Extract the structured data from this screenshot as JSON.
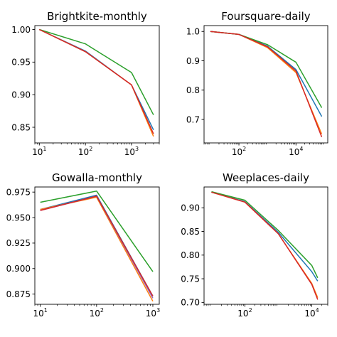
{
  "chart_data": [
    {
      "type": "line",
      "title": "Brightkite-monthly",
      "xscale": "log",
      "xlim": [
        8,
        4000
      ],
      "ylim": [
        0.826,
        1.006
      ],
      "xticks": [
        {
          "value": 10,
          "base": "10",
          "exp": "1"
        },
        {
          "value": 100,
          "base": "10",
          "exp": "2"
        },
        {
          "value": 1000,
          "base": "10",
          "exp": "3"
        }
      ],
      "yticks": [
        {
          "value": 0.85,
          "label": "0.85"
        },
        {
          "value": 0.9,
          "label": "0.90"
        },
        {
          "value": 0.95,
          "label": "0.95"
        },
        {
          "value": 1.0,
          "label": "1.00"
        }
      ],
      "series": [
        {
          "color": "#1f77b4",
          "x": [
            10,
            100,
            1000,
            3000
          ],
          "y": [
            1.0,
            0.967,
            0.915,
            0.846
          ]
        },
        {
          "color": "#ff7f0e",
          "x": [
            10,
            100,
            1000,
            3000
          ],
          "y": [
            1.0,
            0.966,
            0.915,
            0.836
          ]
        },
        {
          "color": "#2ca02c",
          "x": [
            10,
            100,
            1000,
            3000
          ],
          "y": [
            1.0,
            0.978,
            0.934,
            0.869
          ]
        },
        {
          "color": "#d62728",
          "x": [
            10,
            100,
            1000,
            3000
          ],
          "y": [
            1.0,
            0.966,
            0.915,
            0.84
          ]
        }
      ]
    },
    {
      "type": "line",
      "title": "Foursquare-daily",
      "xscale": "log",
      "xlim": [
        6,
        130000
      ],
      "ylim": [
        0.62,
        1.02
      ],
      "xticks": [
        {
          "value": 100,
          "base": "10",
          "exp": "2"
        },
        {
          "value": 10000,
          "base": "10",
          "exp": "4"
        }
      ],
      "yticks": [
        {
          "value": 0.7,
          "label": "0.7"
        },
        {
          "value": 0.8,
          "label": "0.8"
        },
        {
          "value": 0.9,
          "label": "0.9"
        },
        {
          "value": 1.0,
          "label": "1.0"
        }
      ],
      "series": [
        {
          "color": "#1f77b4",
          "x": [
            10,
            100,
            1000,
            10000,
            80000
          ],
          "y": [
            1.0,
            0.99,
            0.95,
            0.87,
            0.71
          ]
        },
        {
          "color": "#ff7f0e",
          "x": [
            10,
            100,
            1000,
            10000,
            80000
          ],
          "y": [
            1.0,
            0.99,
            0.945,
            0.86,
            0.65
          ]
        },
        {
          "color": "#2ca02c",
          "x": [
            10,
            100,
            1000,
            10000,
            80000
          ],
          "y": [
            1.0,
            0.99,
            0.955,
            0.895,
            0.74
          ]
        },
        {
          "color": "#d62728",
          "x": [
            10,
            100,
            1000,
            10000,
            80000
          ],
          "y": [
            1.0,
            0.99,
            0.948,
            0.865,
            0.64
          ]
        }
      ]
    },
    {
      "type": "line",
      "title": "Gowalla-monthly",
      "xscale": "log",
      "xlim": [
        8,
        1300
      ],
      "ylim": [
        0.865,
        0.98
      ],
      "xticks": [
        {
          "value": 10,
          "base": "10",
          "exp": "1"
        },
        {
          "value": 100,
          "base": "10",
          "exp": "2"
        },
        {
          "value": 1000,
          "base": "10",
          "exp": "3"
        }
      ],
      "yticks": [
        {
          "value": 0.875,
          "label": "0.875"
        },
        {
          "value": 0.9,
          "label": "0.900"
        },
        {
          "value": 0.925,
          "label": "0.925"
        },
        {
          "value": 0.95,
          "label": "0.950"
        },
        {
          "value": 0.975,
          "label": "0.975"
        }
      ],
      "series": [
        {
          "color": "#1f77b4",
          "x": [
            10,
            100,
            1000
          ],
          "y": [
            0.958,
            0.972,
            0.873
          ]
        },
        {
          "color": "#ff7f0e",
          "x": [
            10,
            100,
            1000
          ],
          "y": [
            0.958,
            0.97,
            0.868
          ]
        },
        {
          "color": "#2ca02c",
          "x": [
            10,
            100,
            1000
          ],
          "y": [
            0.965,
            0.976,
            0.897
          ]
        },
        {
          "color": "#9467bd",
          "x": [
            10,
            100,
            1000
          ],
          "y": [
            0.957,
            0.971,
            0.871
          ]
        },
        {
          "color": "#d62728",
          "x": [
            10,
            100,
            1000
          ],
          "y": [
            0.957,
            0.971,
            0.873
          ]
        }
      ]
    },
    {
      "type": "line",
      "title": "Weeplaces-daily",
      "xscale": "log",
      "xlim": [
        6,
        30000
      ],
      "ylim": [
        0.696,
        0.944
      ],
      "xticks": [
        {
          "value": 100,
          "base": "10",
          "exp": "2"
        },
        {
          "value": 10000,
          "base": "10",
          "exp": "4"
        }
      ],
      "yticks": [
        {
          "value": 0.7,
          "label": "0.70"
        },
        {
          "value": 0.75,
          "label": "0.75"
        },
        {
          "value": 0.8,
          "label": "0.80"
        },
        {
          "value": 0.85,
          "label": "0.85"
        },
        {
          "value": 0.9,
          "label": "0.90"
        }
      ],
      "series": [
        {
          "color": "#1f77b4",
          "x": [
            10,
            100,
            1000,
            10000,
            15000
          ],
          "y": [
            0.933,
            0.913,
            0.848,
            0.765,
            0.745
          ]
        },
        {
          "color": "#ff7f0e",
          "x": [
            10,
            100,
            1000,
            10000,
            15000
          ],
          "y": [
            0.933,
            0.912,
            0.845,
            0.74,
            0.71
          ]
        },
        {
          "color": "#2ca02c",
          "x": [
            10,
            100,
            1000,
            10000,
            15000
          ],
          "y": [
            0.934,
            0.916,
            0.852,
            0.778,
            0.752
          ]
        },
        {
          "color": "#d62728",
          "x": [
            10,
            100,
            1000,
            10000,
            15000
          ],
          "y": [
            0.933,
            0.912,
            0.845,
            0.738,
            0.706
          ]
        }
      ]
    }
  ]
}
